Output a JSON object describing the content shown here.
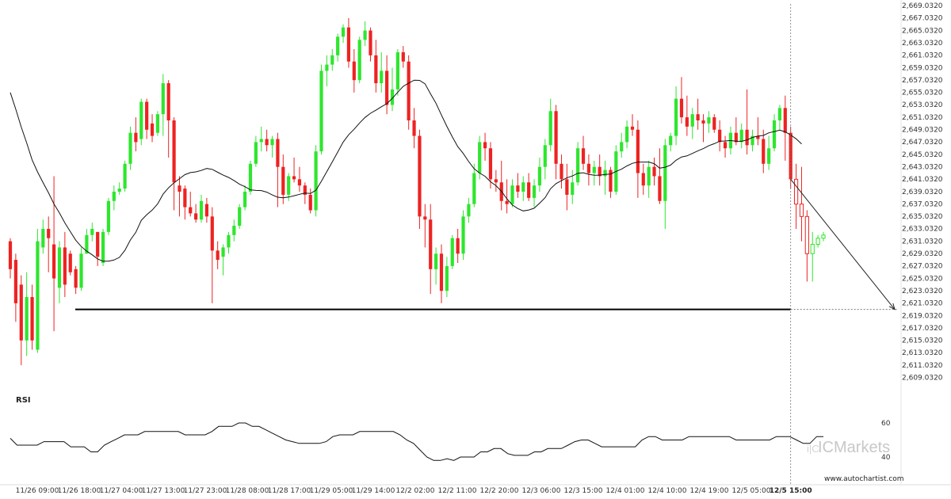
{
  "chart_data": {
    "type": "candlestick",
    "instrument_hint": "",
    "price_axis": {
      "labels": [
        "2,669.0320",
        "2,667.0320",
        "2,665.0320",
        "2,663.0320",
        "2,661.0320",
        "2,659.0320",
        "2,657.0320",
        "2,655.0320",
        "2,653.0320",
        "2,651.0320",
        "2,649.0320",
        "2,647.0320",
        "2,645.0320",
        "2,643.0320",
        "2,641.0320",
        "2,639.0320",
        "2,637.0320",
        "2,635.0320",
        "2,633.0320",
        "2,631.0320",
        "2,629.0320",
        "2,627.0320",
        "2,625.0320",
        "2,623.0320",
        "2,621.0320",
        "2,619.0320",
        "2,617.0320",
        "2,615.0320",
        "2,613.0320",
        "2,611.0320",
        "2,609.0320"
      ],
      "range": [
        2608.0,
        2669.5
      ]
    },
    "time_axis": {
      "labels": [
        "11/26 09:00",
        "11/26 18:00",
        "11/27 04:00",
        "11/27 13:00",
        "11/27 23:00",
        "11/28 08:00",
        "11/28 17:00",
        "11/29 05:00",
        "11/29 14:00",
        "12/2 02:00",
        "12/2 11:00",
        "12/2 20:00",
        "12/3 06:00",
        "12/3 15:00",
        "12/4 01:00",
        "12/4 10:00",
        "12/4 19:00",
        "12/5 05:00",
        "12/5 15:00"
      ],
      "current_label": "12/5 15:00"
    },
    "support_level": 2620.0,
    "projection": {
      "from": 2641.0,
      "to": 2620.0
    },
    "rsi": {
      "label": "RSI",
      "levels": [
        "60",
        "40"
      ],
      "values": [
        51,
        47,
        47,
        47,
        47,
        49,
        49,
        49,
        49,
        46,
        46,
        46,
        43,
        43,
        47,
        49,
        51,
        53,
        53,
        53,
        55,
        55,
        55,
        55,
        55,
        55,
        53,
        53,
        53,
        53,
        55,
        58,
        58,
        58,
        60,
        60,
        58,
        58,
        56,
        54,
        52,
        50,
        49,
        48,
        48,
        48,
        48,
        49,
        52,
        53,
        53,
        53,
        55,
        55,
        55,
        55,
        55,
        55,
        53,
        50,
        48,
        44,
        40,
        38,
        38,
        39,
        38,
        40,
        40,
        40,
        43,
        43,
        45,
        45,
        42,
        41,
        41,
        41,
        43,
        43,
        45,
        45,
        45,
        47,
        49,
        50,
        50,
        48,
        46,
        46,
        46,
        46,
        46,
        46,
        50,
        52,
        52,
        50,
        50,
        50,
        50,
        52,
        52,
        52,
        52,
        52,
        52,
        52,
        50,
        50,
        50,
        50,
        50,
        50,
        52,
        52,
        52,
        50,
        48,
        48,
        52,
        52
      ]
    },
    "candles": [
      {
        "o": 2631.0,
        "h": 2631.5,
        "l": 2625.0,
        "c": 2626.5
      },
      {
        "o": 2628.0,
        "h": 2629.0,
        "l": 2618.0,
        "c": 2621.0
      },
      {
        "o": 2624.0,
        "h": 2625.5,
        "l": 2611.0,
        "c": 2615.0
      },
      {
        "o": 2615.0,
        "h": 2626.0,
        "l": 2612.5,
        "c": 2622.0
      },
      {
        "o": 2622.0,
        "h": 2624.0,
        "l": 2613.5,
        "c": 2615.0
      },
      {
        "o": 2613.5,
        "h": 2633.0,
        "l": 2613.0,
        "c": 2631.0
      },
      {
        "o": 2630.0,
        "h": 2634.5,
        "l": 2629.0,
        "c": 2633.0
      },
      {
        "o": 2633.0,
        "h": 2635.0,
        "l": 2626.0,
        "c": 2631.5
      },
      {
        "o": 2630.5,
        "h": 2641.5,
        "l": 2616.5,
        "c": 2625.0
      },
      {
        "o": 2623.5,
        "h": 2631.0,
        "l": 2621.0,
        "c": 2630.0
      },
      {
        "o": 2630.0,
        "h": 2632.5,
        "l": 2622.0,
        "c": 2624.0
      },
      {
        "o": 2629.0,
        "h": 2629.5,
        "l": 2625.5,
        "c": 2626.0
      },
      {
        "o": 2626.5,
        "h": 2627.0,
        "l": 2622.5,
        "c": 2623.5
      },
      {
        "o": 2623.5,
        "h": 2630.0,
        "l": 2623.0,
        "c": 2629.0
      },
      {
        "o": 2629.0,
        "h": 2633.0,
        "l": 2629.0,
        "c": 2632.0
      },
      {
        "o": 2632.0,
        "h": 2634.0,
        "l": 2631.0,
        "c": 2633.0
      },
      {
        "o": 2632.5,
        "h": 2632.5,
        "l": 2627.0,
        "c": 2628.5
      },
      {
        "o": 2627.5,
        "h": 2633.0,
        "l": 2627.0,
        "c": 2632.5
      },
      {
        "o": 2632.5,
        "h": 2638.0,
        "l": 2632.0,
        "c": 2637.5
      },
      {
        "o": 2637.5,
        "h": 2640.0,
        "l": 2636.0,
        "c": 2639.0
      },
      {
        "o": 2639.0,
        "h": 2640.5,
        "l": 2638.5,
        "c": 2639.5
      },
      {
        "o": 2639.5,
        "h": 2644.0,
        "l": 2639.0,
        "c": 2643.5
      },
      {
        "o": 2643.5,
        "h": 2649.5,
        "l": 2642.5,
        "c": 2648.5
      },
      {
        "o": 2648.5,
        "h": 2651.0,
        "l": 2645.5,
        "c": 2647.0
      },
      {
        "o": 2647.5,
        "h": 2654.0,
        "l": 2646.5,
        "c": 2653.5
      },
      {
        "o": 2653.5,
        "h": 2654.0,
        "l": 2647.5,
        "c": 2649.0
      },
      {
        "o": 2650.0,
        "h": 2651.5,
        "l": 2647.0,
        "c": 2648.0
      },
      {
        "o": 2648.5,
        "h": 2652.0,
        "l": 2648.0,
        "c": 2651.5
      },
      {
        "o": 2651.5,
        "h": 2658.0,
        "l": 2648.0,
        "c": 2656.5
      },
      {
        "o": 2656.5,
        "h": 2657.0,
        "l": 2644.5,
        "c": 2650.5
      },
      {
        "o": 2650.5,
        "h": 2651.0,
        "l": 2636.0,
        "c": 2640.5
      },
      {
        "o": 2640.0,
        "h": 2641.5,
        "l": 2635.0,
        "c": 2639.0
      },
      {
        "o": 2639.5,
        "h": 2640.0,
        "l": 2634.5,
        "c": 2636.5
      },
      {
        "o": 2636.5,
        "h": 2639.0,
        "l": 2635.0,
        "c": 2635.5
      },
      {
        "o": 2635.5,
        "h": 2637.0,
        "l": 2634.0,
        "c": 2634.5
      },
      {
        "o": 2634.5,
        "h": 2638.5,
        "l": 2634.0,
        "c": 2637.5
      },
      {
        "o": 2637.0,
        "h": 2638.0,
        "l": 2634.0,
        "c": 2635.0
      },
      {
        "o": 2635.0,
        "h": 2636.5,
        "l": 2621.0,
        "c": 2629.5
      },
      {
        "o": 2629.5,
        "h": 2631.0,
        "l": 2626.5,
        "c": 2628.0
      },
      {
        "o": 2628.5,
        "h": 2630.5,
        "l": 2625.5,
        "c": 2630.0
      },
      {
        "o": 2630.0,
        "h": 2632.5,
        "l": 2629.0,
        "c": 2632.0
      },
      {
        "o": 2632.0,
        "h": 2634.5,
        "l": 2631.0,
        "c": 2633.5
      },
      {
        "o": 2633.5,
        "h": 2637.0,
        "l": 2633.0,
        "c": 2636.5
      },
      {
        "o": 2636.5,
        "h": 2640.0,
        "l": 2636.0,
        "c": 2639.0
      },
      {
        "o": 2639.0,
        "h": 2644.0,
        "l": 2638.5,
        "c": 2643.5
      },
      {
        "o": 2643.5,
        "h": 2648.0,
        "l": 2643.0,
        "c": 2647.0
      },
      {
        "o": 2647.0,
        "h": 2649.5,
        "l": 2645.5,
        "c": 2647.5
      },
      {
        "o": 2647.5,
        "h": 2649.0,
        "l": 2645.5,
        "c": 2646.5
      },
      {
        "o": 2646.5,
        "h": 2648.0,
        "l": 2644.5,
        "c": 2647.5
      },
      {
        "o": 2647.5,
        "h": 2648.5,
        "l": 2636.5,
        "c": 2643.0
      },
      {
        "o": 2643.0,
        "h": 2645.0,
        "l": 2637.0,
        "c": 2638.5
      },
      {
        "o": 2638.5,
        "h": 2642.0,
        "l": 2637.5,
        "c": 2641.5
      },
      {
        "o": 2641.5,
        "h": 2644.5,
        "l": 2640.5,
        "c": 2641.0
      },
      {
        "o": 2641.0,
        "h": 2643.0,
        "l": 2639.0,
        "c": 2640.0
      },
      {
        "o": 2640.0,
        "h": 2640.5,
        "l": 2637.0,
        "c": 2638.5
      },
      {
        "o": 2638.5,
        "h": 2639.5,
        "l": 2635.5,
        "c": 2636.0
      },
      {
        "o": 2636.0,
        "h": 2646.5,
        "l": 2635.0,
        "c": 2645.5
      },
      {
        "o": 2645.5,
        "h": 2659.5,
        "l": 2645.0,
        "c": 2658.5
      },
      {
        "o": 2658.5,
        "h": 2661.0,
        "l": 2656.0,
        "c": 2659.5
      },
      {
        "o": 2659.5,
        "h": 2662.0,
        "l": 2658.5,
        "c": 2661.0
      },
      {
        "o": 2661.0,
        "h": 2664.5,
        "l": 2660.0,
        "c": 2664.0
      },
      {
        "o": 2664.0,
        "h": 2666.0,
        "l": 2663.0,
        "c": 2665.5
      },
      {
        "o": 2665.5,
        "h": 2667.0,
        "l": 2659.0,
        "c": 2660.0
      },
      {
        "o": 2660.0,
        "h": 2662.0,
        "l": 2655.0,
        "c": 2657.0
      },
      {
        "o": 2657.0,
        "h": 2664.0,
        "l": 2656.5,
        "c": 2663.5
      },
      {
        "o": 2663.5,
        "h": 2666.5,
        "l": 2662.5,
        "c": 2665.0
      },
      {
        "o": 2665.0,
        "h": 2665.5,
        "l": 2660.0,
        "c": 2661.0
      },
      {
        "o": 2661.0,
        "h": 2663.5,
        "l": 2655.0,
        "c": 2656.5
      },
      {
        "o": 2656.5,
        "h": 2661.5,
        "l": 2655.0,
        "c": 2658.5
      },
      {
        "o": 2658.5,
        "h": 2661.0,
        "l": 2651.5,
        "c": 2653.0
      },
      {
        "o": 2653.0,
        "h": 2659.0,
        "l": 2652.0,
        "c": 2655.5
      },
      {
        "o": 2655.5,
        "h": 2662.0,
        "l": 2654.5,
        "c": 2661.5
      },
      {
        "o": 2661.5,
        "h": 2662.5,
        "l": 2659.0,
        "c": 2660.0
      },
      {
        "o": 2660.0,
        "h": 2661.0,
        "l": 2649.0,
        "c": 2650.5
      },
      {
        "o": 2650.5,
        "h": 2652.5,
        "l": 2646.0,
        "c": 2648.0
      },
      {
        "o": 2648.0,
        "h": 2649.0,
        "l": 2633.0,
        "c": 2635.0
      },
      {
        "o": 2635.0,
        "h": 2637.0,
        "l": 2630.0,
        "c": 2634.5
      },
      {
        "o": 2634.5,
        "h": 2637.0,
        "l": 2622.5,
        "c": 2626.5
      },
      {
        "o": 2626.5,
        "h": 2630.0,
        "l": 2624.0,
        "c": 2629.0
      },
      {
        "o": 2629.0,
        "h": 2630.5,
        "l": 2621.0,
        "c": 2623.0
      },
      {
        "o": 2623.0,
        "h": 2628.5,
        "l": 2622.0,
        "c": 2627.0
      },
      {
        "o": 2627.0,
        "h": 2632.0,
        "l": 2626.5,
        "c": 2631.5
      },
      {
        "o": 2631.5,
        "h": 2633.0,
        "l": 2627.5,
        "c": 2629.0
      },
      {
        "o": 2629.0,
        "h": 2636.0,
        "l": 2628.0,
        "c": 2635.0
      },
      {
        "o": 2635.0,
        "h": 2638.0,
        "l": 2634.0,
        "c": 2637.0
      },
      {
        "o": 2637.0,
        "h": 2643.5,
        "l": 2636.5,
        "c": 2642.0
      },
      {
        "o": 2642.0,
        "h": 2648.0,
        "l": 2641.0,
        "c": 2647.0
      },
      {
        "o": 2647.0,
        "h": 2648.5,
        "l": 2644.0,
        "c": 2646.0
      },
      {
        "o": 2646.0,
        "h": 2647.0,
        "l": 2639.5,
        "c": 2641.0
      },
      {
        "o": 2641.0,
        "h": 2642.5,
        "l": 2639.0,
        "c": 2640.5
      },
      {
        "o": 2640.5,
        "h": 2644.0,
        "l": 2636.0,
        "c": 2637.5
      },
      {
        "o": 2637.5,
        "h": 2641.0,
        "l": 2635.5,
        "c": 2637.0
      },
      {
        "o": 2637.0,
        "h": 2641.0,
        "l": 2636.5,
        "c": 2640.0
      },
      {
        "o": 2640.0,
        "h": 2642.0,
        "l": 2638.0,
        "c": 2639.0
      },
      {
        "o": 2639.0,
        "h": 2641.5,
        "l": 2637.5,
        "c": 2640.5
      },
      {
        "o": 2640.5,
        "h": 2642.0,
        "l": 2637.5,
        "c": 2638.0
      },
      {
        "o": 2638.0,
        "h": 2641.0,
        "l": 2636.5,
        "c": 2640.0
      },
      {
        "o": 2640.0,
        "h": 2644.5,
        "l": 2639.0,
        "c": 2643.0
      },
      {
        "o": 2643.0,
        "h": 2647.5,
        "l": 2641.0,
        "c": 2646.5
      },
      {
        "o": 2646.5,
        "h": 2654.0,
        "l": 2645.5,
        "c": 2652.0
      },
      {
        "o": 2652.0,
        "h": 2653.0,
        "l": 2641.0,
        "c": 2643.5
      },
      {
        "o": 2643.5,
        "h": 2645.0,
        "l": 2639.5,
        "c": 2641.0
      },
      {
        "o": 2641.0,
        "h": 2643.5,
        "l": 2636.0,
        "c": 2638.5
      },
      {
        "o": 2638.5,
        "h": 2642.5,
        "l": 2637.0,
        "c": 2640.5
      },
      {
        "o": 2640.5,
        "h": 2647.0,
        "l": 2640.0,
        "c": 2646.0
      },
      {
        "o": 2646.0,
        "h": 2648.0,
        "l": 2642.5,
        "c": 2643.5
      },
      {
        "o": 2643.5,
        "h": 2645.0,
        "l": 2640.0,
        "c": 2642.0
      },
      {
        "o": 2642.0,
        "h": 2644.0,
        "l": 2640.0,
        "c": 2643.0
      },
      {
        "o": 2643.0,
        "h": 2645.0,
        "l": 2640.0,
        "c": 2641.5
      },
      {
        "o": 2641.5,
        "h": 2644.0,
        "l": 2638.5,
        "c": 2642.5
      },
      {
        "o": 2642.5,
        "h": 2643.0,
        "l": 2638.0,
        "c": 2639.0
      },
      {
        "o": 2639.0,
        "h": 2646.5,
        "l": 2638.5,
        "c": 2645.5
      },
      {
        "o": 2645.5,
        "h": 2648.5,
        "l": 2644.5,
        "c": 2647.0
      },
      {
        "o": 2647.0,
        "h": 2650.5,
        "l": 2646.0,
        "c": 2649.5
      },
      {
        "o": 2649.5,
        "h": 2651.5,
        "l": 2648.0,
        "c": 2649.0
      },
      {
        "o": 2649.0,
        "h": 2650.5,
        "l": 2638.0,
        "c": 2642.0
      },
      {
        "o": 2642.0,
        "h": 2643.5,
        "l": 2638.5,
        "c": 2640.0
      },
      {
        "o": 2640.0,
        "h": 2644.0,
        "l": 2638.0,
        "c": 2643.0
      },
      {
        "o": 2643.0,
        "h": 2644.5,
        "l": 2640.0,
        "c": 2641.5
      },
      {
        "o": 2641.5,
        "h": 2646.0,
        "l": 2637.0,
        "c": 2637.5
      },
      {
        "o": 2637.5,
        "h": 2647.5,
        "l": 2633.0,
        "c": 2646.5
      },
      {
        "o": 2646.5,
        "h": 2648.5,
        "l": 2645.5,
        "c": 2648.0
      },
      {
        "o": 2648.0,
        "h": 2656.0,
        "l": 2646.5,
        "c": 2654.0
      },
      {
        "o": 2654.0,
        "h": 2657.5,
        "l": 2650.0,
        "c": 2651.0
      },
      {
        "o": 2651.0,
        "h": 2654.5,
        "l": 2648.0,
        "c": 2649.5
      },
      {
        "o": 2649.5,
        "h": 2652.5,
        "l": 2647.5,
        "c": 2651.5
      },
      {
        "o": 2651.5,
        "h": 2654.0,
        "l": 2649.0,
        "c": 2650.5
      },
      {
        "o": 2650.5,
        "h": 2651.5,
        "l": 2647.0,
        "c": 2650.0
      },
      {
        "o": 2650.0,
        "h": 2652.0,
        "l": 2648.5,
        "c": 2651.0
      },
      {
        "o": 2651.0,
        "h": 2651.5,
        "l": 2648.5,
        "c": 2649.0
      },
      {
        "o": 2649.0,
        "h": 2650.5,
        "l": 2645.5,
        "c": 2647.0
      },
      {
        "o": 2647.0,
        "h": 2648.0,
        "l": 2644.5,
        "c": 2646.0
      },
      {
        "o": 2646.0,
        "h": 2649.5,
        "l": 2645.0,
        "c": 2648.5
      },
      {
        "o": 2648.5,
        "h": 2651.0,
        "l": 2646.5,
        "c": 2647.0
      },
      {
        "o": 2647.0,
        "h": 2650.0,
        "l": 2646.0,
        "c": 2649.0
      },
      {
        "o": 2649.0,
        "h": 2655.5,
        "l": 2645.0,
        "c": 2646.5
      },
      {
        "o": 2646.5,
        "h": 2649.0,
        "l": 2645.5,
        "c": 2648.0
      },
      {
        "o": 2648.0,
        "h": 2651.0,
        "l": 2646.5,
        "c": 2647.5
      },
      {
        "o": 2647.5,
        "h": 2649.0,
        "l": 2642.0,
        "c": 2643.5
      },
      {
        "o": 2643.5,
        "h": 2648.0,
        "l": 2642.5,
        "c": 2646.0
      },
      {
        "o": 2646.0,
        "h": 2651.5,
        "l": 2645.5,
        "c": 2650.5
      },
      {
        "o": 2650.5,
        "h": 2653.0,
        "l": 2649.0,
        "c": 2652.5
      },
      {
        "o": 2652.5,
        "h": 2654.5,
        "l": 2644.0,
        "c": 2648.5
      },
      {
        "o": 2648.5,
        "h": 2649.5,
        "l": 2639.5,
        "c": 2641.0
      },
      {
        "o": 2641.0,
        "h": 2643.5,
        "l": 2633.0,
        "c": 2637.0
      },
      {
        "o": 2637.0,
        "h": 2643.0,
        "l": 2631.0,
        "c": 2635.0
      },
      {
        "o": 2635.0,
        "h": 2636.0,
        "l": 2624.5,
        "c": 2629.0
      },
      {
        "o": 2629.0,
        "h": 2632.5,
        "l": 2624.5,
        "c": 2630.5
      },
      {
        "o": 2630.5,
        "h": 2632.0,
        "l": 2630.0,
        "c": 2631.5
      },
      {
        "o": 2631.5,
        "h": 2632.5,
        "l": 2631.0,
        "c": 2632.0
      }
    ]
  },
  "watermark": {
    "url": "www.autochartist.com",
    "brand": "ICMarkets",
    "brand_prefix": "i|C"
  },
  "colors": {
    "bull": "#2ee62e",
    "bear": "#ee2222",
    "ma": "#111111",
    "support": "#000000",
    "rsi": "#111111",
    "grid_axis": "#999999"
  }
}
